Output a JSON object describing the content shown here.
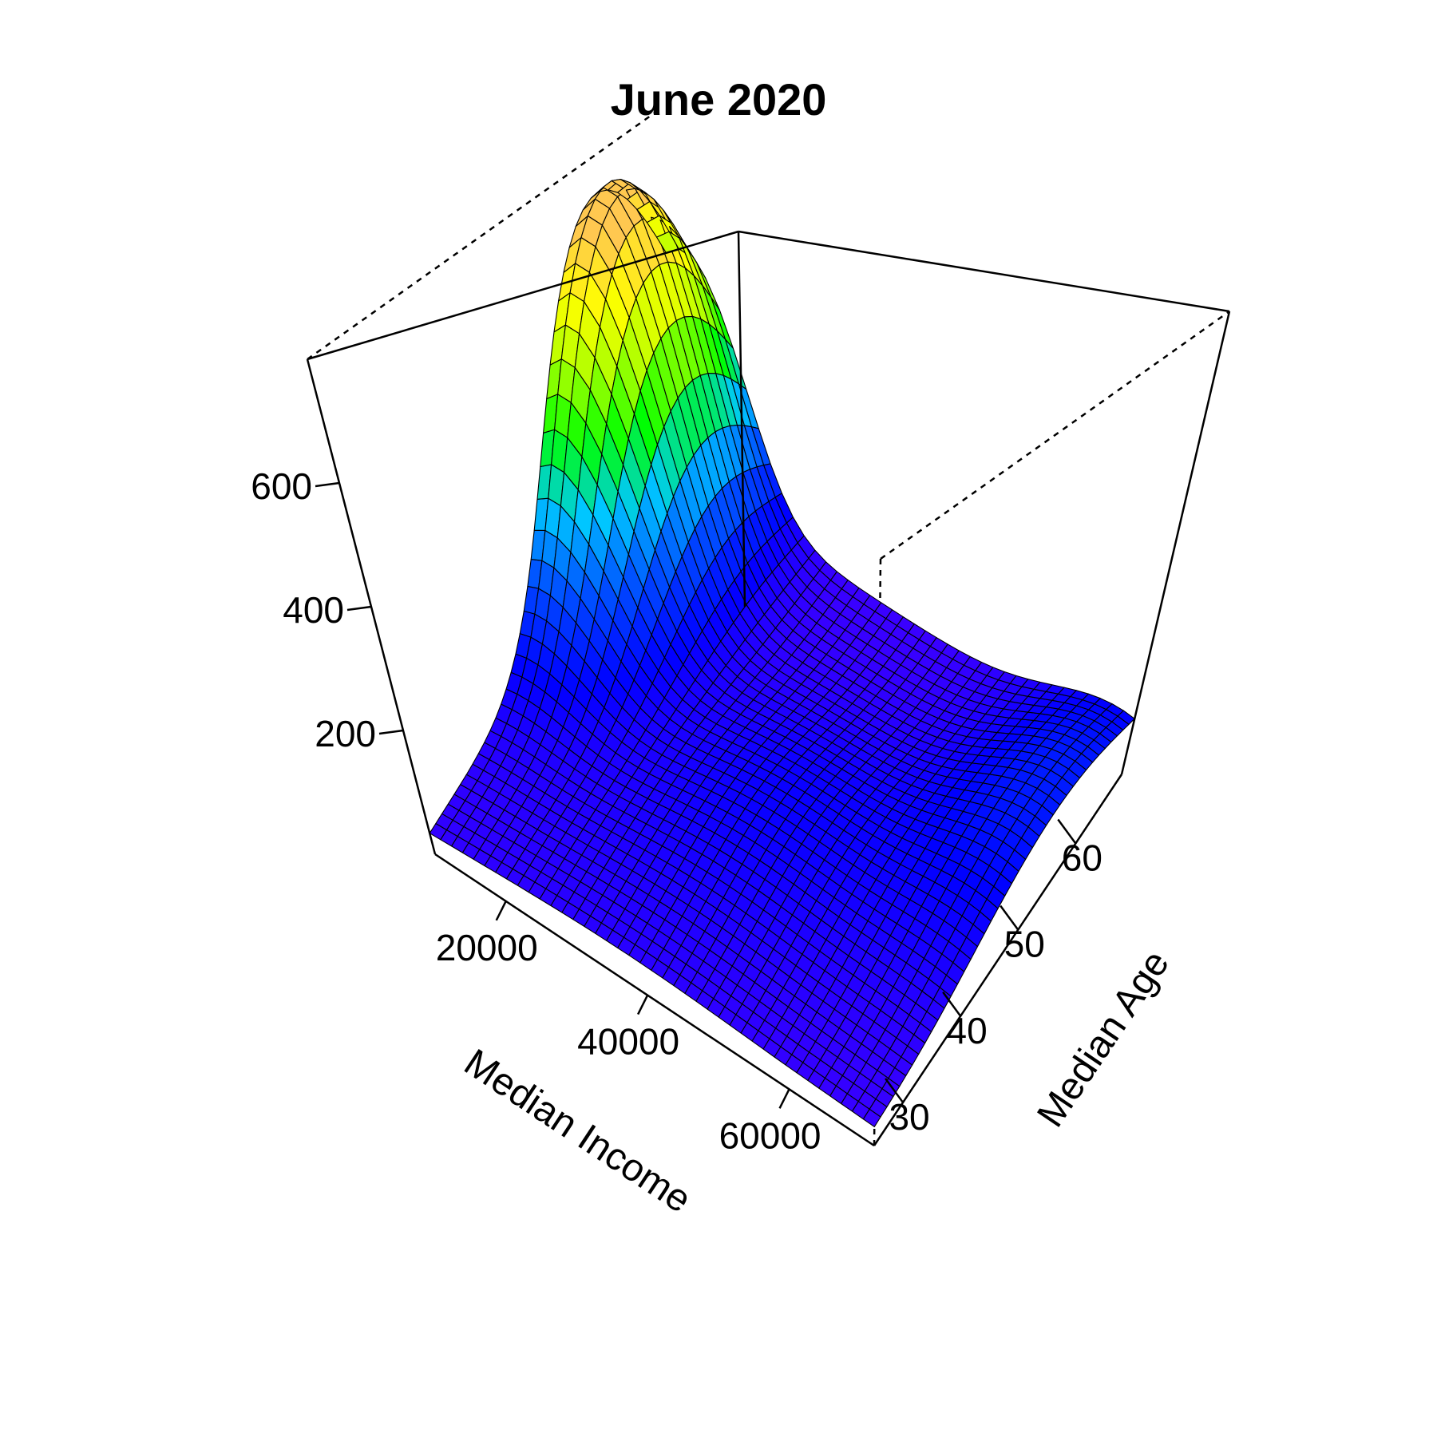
{
  "chart_data": {
    "type": "surface",
    "title": "June 2020",
    "xlabel": "Median Income",
    "ylabel": "Median Age",
    "zlabel": "",
    "xlim": [
      10000,
      72000
    ],
    "ylim": [
      25,
      68
    ],
    "zlim": [
      0,
      800
    ],
    "x_ticks": [
      20000,
      40000,
      60000
    ],
    "y_ticks": [
      30,
      40,
      50,
      60
    ],
    "z_ticks": [
      200,
      400,
      600
    ],
    "x_tick_labels": [
      "20000",
      "40000",
      "60000"
    ],
    "y_tick_labels": [
      "30",
      "40",
      "50",
      "60"
    ],
    "z_tick_labels": [
      "200",
      "400",
      "600"
    ],
    "grid_size": [
      40,
      40
    ],
    "colormap": [
      "#4b00ff",
      "#0000ff",
      "#0050ff",
      "#00c8ff",
      "#00ff00",
      "#aaff00",
      "#ffff00",
      "#ffc850"
    ],
    "surface_peaks": [
      {
        "income": 12000,
        "age": 60,
        "height": 760
      },
      {
        "income": 70000,
        "age": 58,
        "height": 130
      },
      {
        "income": 45000,
        "age": 45,
        "height": 80
      }
    ],
    "grid_values_sample": {
      "income": [
        12000,
        20000,
        30000,
        40000,
        50000,
        60000,
        70000
      ],
      "age_60": [
        760,
        330,
        70,
        45,
        60,
        90,
        130
      ],
      "age_30": [
        40,
        50,
        25,
        20,
        30,
        30,
        20
      ]
    }
  }
}
